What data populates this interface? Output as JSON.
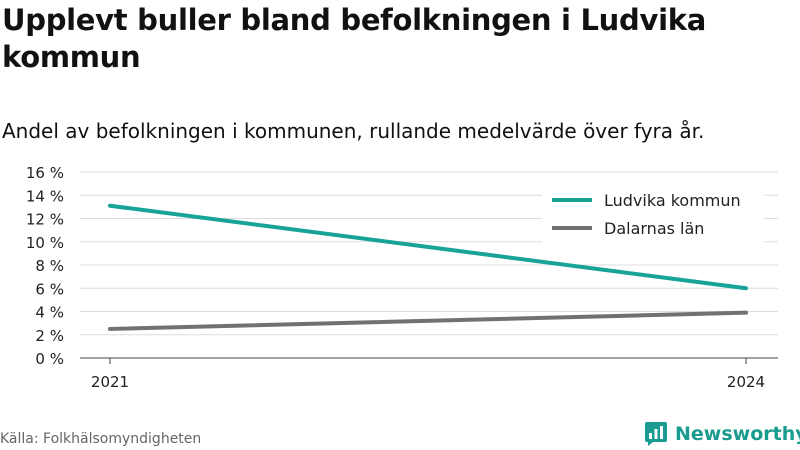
{
  "title": "Upplevt buller bland befolkningen i Ludvika kommun",
  "subtitle": "Andel av befolkningen i kommunen, rullande medelvärde över fyra år.",
  "source": "Källa: Folkhälsomyndigheten",
  "brand": {
    "name": "Newsworthy",
    "icon": "newsworthy-logo-icon",
    "color": "#199b8f"
  },
  "chart_data": {
    "type": "line",
    "x": [
      2021,
      2024
    ],
    "x_tick_labels": [
      "2021",
      "2024"
    ],
    "y_tick_labels": [
      "0 %",
      "2 %",
      "4 %",
      "6 %",
      "8 %",
      "10 %",
      "12 %",
      "14 %",
      "16 %"
    ],
    "y_ticks": [
      0,
      2,
      4,
      6,
      8,
      10,
      12,
      14,
      16
    ],
    "ylim": [
      0,
      16
    ],
    "y_unit": "%",
    "grid": true,
    "legend_position": "top-right",
    "series": [
      {
        "name": "Ludvika kommun",
        "values": [
          13.1,
          6.0
        ],
        "color": "#17a398"
      },
      {
        "name": "Dalarnas län",
        "values": [
          2.5,
          3.9
        ],
        "color": "#717075"
      }
    ]
  }
}
